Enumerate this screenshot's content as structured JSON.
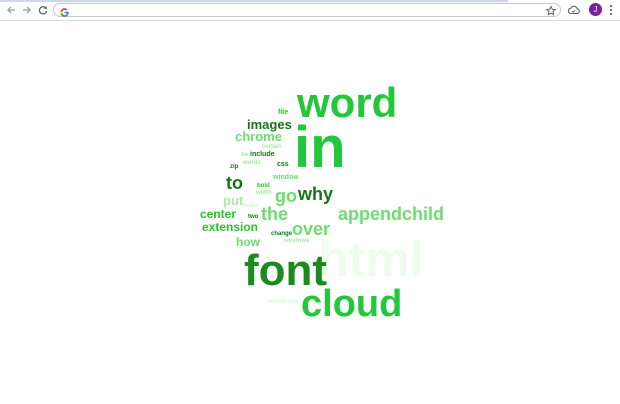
{
  "browser": {
    "address_value": "",
    "avatar_letter": "J",
    "page_load_progress": 0.82,
    "icons": {
      "back": "arrow-left-icon",
      "forward": "arrow-right-icon",
      "reload": "reload-icon",
      "google": "google-g-icon",
      "bookmark": "star-icon",
      "cloud_sync": "cloud-icon",
      "menu": "kebab-menu-icon"
    }
  },
  "word_cloud": {
    "colors": {
      "dark": "#1c8a1c",
      "darker": "#16731a",
      "mid": "#2ec02e",
      "bright": "#22c83a",
      "light": "#6fdc6f",
      "pale": "#a9eaa9",
      "faint": "#d9f7d9",
      "ghost": "#eefcee"
    },
    "words": [
      {
        "text": "word",
        "color": "bright"
      },
      {
        "text": "in",
        "color": "bright"
      },
      {
        "text": "file",
        "color": "mid"
      },
      {
        "text": "images",
        "color": "darker"
      },
      {
        "text": "chrome",
        "color": "light"
      },
      {
        "text": "certain",
        "color": "pale"
      },
      {
        "text": "be",
        "color": "pale"
      },
      {
        "text": "include",
        "color": "darker"
      },
      {
        "text": "words",
        "color": "pale"
      },
      {
        "text": "zip",
        "color": "darker"
      },
      {
        "text": "css",
        "color": "darker"
      },
      {
        "text": "to",
        "color": "darker"
      },
      {
        "text": "window",
        "color": "light"
      },
      {
        "text": "bold",
        "color": "mid"
      },
      {
        "text": "width",
        "color": "pale"
      },
      {
        "text": "go",
        "color": "light"
      },
      {
        "text": "why",
        "color": "darker"
      },
      {
        "text": "put",
        "color": "pale"
      },
      {
        "text": "make",
        "color": "faint"
      },
      {
        "text": "center",
        "color": "mid"
      },
      {
        "text": "two",
        "color": "darker"
      },
      {
        "text": "the",
        "color": "light"
      },
      {
        "text": "appendchild",
        "color": "light"
      },
      {
        "text": "extension",
        "color": "mid"
      },
      {
        "text": "over",
        "color": "light"
      },
      {
        "text": "change",
        "color": "darker"
      },
      {
        "text": "windows",
        "color": "pale"
      },
      {
        "text": "how",
        "color": "light"
      },
      {
        "text": "font",
        "color": "dark"
      },
      {
        "text": "html",
        "color": "ghost"
      },
      {
        "text": "cloud",
        "color": "bright"
      },
      {
        "text": "wordpress",
        "color": "faint"
      }
    ]
  }
}
